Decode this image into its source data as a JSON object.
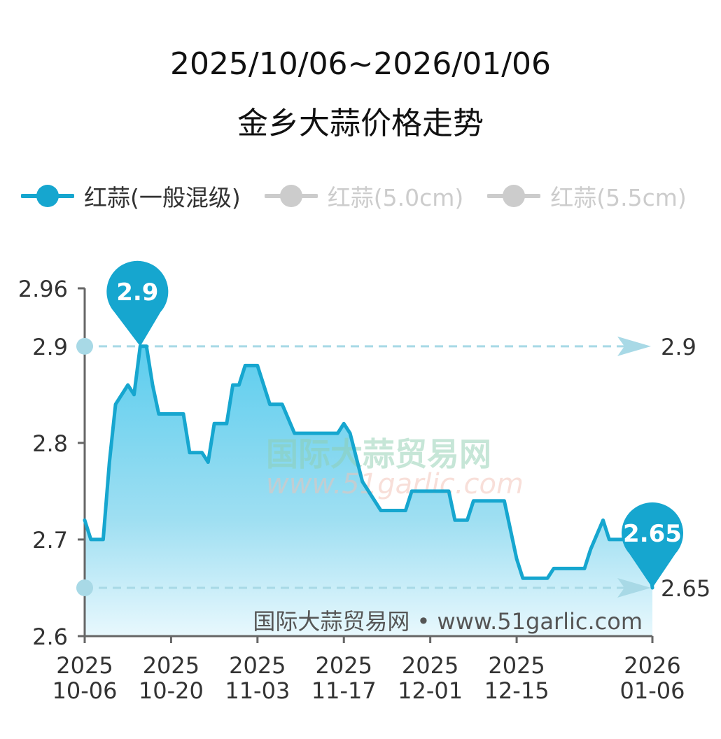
{
  "title": {
    "line1": "2025/10/06~2026/01/06",
    "line2": "金乡大蒜价格走势"
  },
  "legend": [
    {
      "label": "红蒜(一般混级)",
      "color": "#16a6cf",
      "active": true
    },
    {
      "label": "红蒜(5.0cm)",
      "color": "#cccccc",
      "active": false
    },
    {
      "label": "红蒜(5.5cm)",
      "color": "#cccccc",
      "active": false
    }
  ],
  "watermark": {
    "cn": "国际大蒜贸易网",
    "url": "www.51garlic.com"
  },
  "footer": {
    "source": "国际大蒜贸易网 • www.51garlic.com"
  },
  "chart_data": {
    "type": "area",
    "title": "金乡大蒜价格走势",
    "ylim": [
      2.6,
      2.96
    ],
    "yticks": [
      "2.96",
      "2.9",
      "2.8",
      "2.7",
      "2.6"
    ],
    "xlim": [
      "2025-10-06",
      "2026-01-06"
    ],
    "xticks": [
      {
        "date": "2025-10-06",
        "year": "2025",
        "md": "10-06"
      },
      {
        "date": "2025-10-20",
        "year": "2025",
        "md": "10-20"
      },
      {
        "date": "2025-11-03",
        "year": "2025",
        "md": "11-03"
      },
      {
        "date": "2025-11-17",
        "year": "2025",
        "md": "11-17"
      },
      {
        "date": "2025-12-01",
        "year": "2025",
        "md": "12-01"
      },
      {
        "date": "2025-12-15",
        "year": "2025",
        "md": "12-15"
      },
      {
        "date": "2026-01-06",
        "year": "2026",
        "md": "01-06"
      }
    ],
    "max": {
      "value": 2.9,
      "label": "2.9",
      "date": "2025-10-15"
    },
    "latest": {
      "value": 2.65,
      "label": "2.65",
      "date": "2026-01-06"
    },
    "reference_lines": [
      {
        "value": 2.9,
        "label": "2.9"
      },
      {
        "value": 2.65,
        "label": "2.65"
      }
    ],
    "series": [
      {
        "name": "红蒜(一般混级)",
        "color": "#16a6cf",
        "points": [
          [
            "2025-10-06",
            2.72
          ],
          [
            "2025-10-07",
            2.7
          ],
          [
            "2025-10-09",
            2.7
          ],
          [
            "2025-10-10",
            2.78
          ],
          [
            "2025-10-11",
            2.84
          ],
          [
            "2025-10-13",
            2.86
          ],
          [
            "2025-10-14",
            2.85
          ],
          [
            "2025-10-15",
            2.9
          ],
          [
            "2025-10-16",
            2.9
          ],
          [
            "2025-10-17",
            2.86
          ],
          [
            "2025-10-18",
            2.83
          ],
          [
            "2025-10-22",
            2.83
          ],
          [
            "2025-10-23",
            2.79
          ],
          [
            "2025-10-25",
            2.79
          ],
          [
            "2025-10-26",
            2.78
          ],
          [
            "2025-10-27",
            2.82
          ],
          [
            "2025-10-29",
            2.82
          ],
          [
            "2025-10-30",
            2.86
          ],
          [
            "2025-10-31",
            2.86
          ],
          [
            "2025-11-01",
            2.88
          ],
          [
            "2025-11-03",
            2.88
          ],
          [
            "2025-11-05",
            2.84
          ],
          [
            "2025-11-07",
            2.84
          ],
          [
            "2025-11-09",
            2.81
          ],
          [
            "2025-11-16",
            2.81
          ],
          [
            "2025-11-17",
            2.82
          ],
          [
            "2025-11-18",
            2.81
          ],
          [
            "2025-11-20",
            2.76
          ],
          [
            "2025-11-23",
            2.73
          ],
          [
            "2025-11-27",
            2.73
          ],
          [
            "2025-11-28",
            2.75
          ],
          [
            "2025-12-04",
            2.75
          ],
          [
            "2025-12-05",
            2.72
          ],
          [
            "2025-12-07",
            2.72
          ],
          [
            "2025-12-08",
            2.74
          ],
          [
            "2025-12-13",
            2.74
          ],
          [
            "2025-12-15",
            2.68
          ],
          [
            "2025-12-16",
            2.66
          ],
          [
            "2025-12-20",
            2.66
          ],
          [
            "2025-12-21",
            2.67
          ],
          [
            "2025-12-26",
            2.67
          ],
          [
            "2025-12-27",
            2.69
          ],
          [
            "2025-12-29",
            2.72
          ],
          [
            "2025-12-30",
            2.7
          ],
          [
            "2026-01-05",
            2.7
          ],
          [
            "2026-01-06",
            2.65
          ]
        ]
      }
    ]
  }
}
